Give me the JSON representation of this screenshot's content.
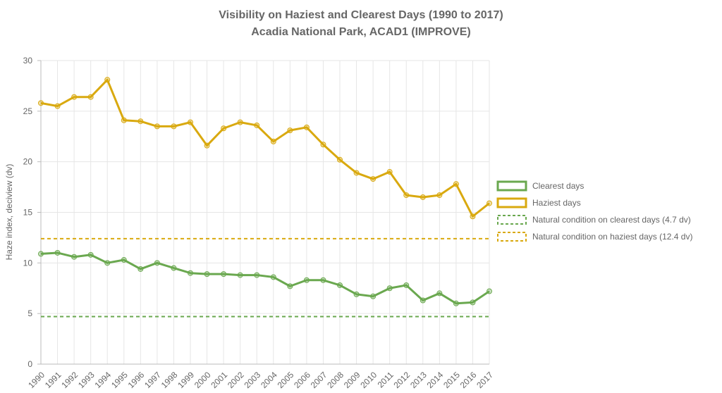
{
  "chart_data": {
    "type": "line",
    "title": "Visibility on Haziest and Clearest Days  (1990 to 2017)",
    "subtitle": "Acadia National Park, ACAD1 (IMPROVE)",
    "xlabel": "",
    "ylabel": "Haze index, deciview (dv)",
    "ylim": [
      0,
      30
    ],
    "yticks": [
      "0",
      "5",
      "10",
      "15",
      "20",
      "25",
      "30"
    ],
    "ytick_values": [
      0,
      5,
      10,
      15,
      20,
      25,
      30
    ],
    "grid": true,
    "legend_position": "right",
    "x": [
      "1990",
      "1991",
      "1992",
      "1993",
      "1994",
      "1995",
      "1996",
      "1997",
      "1998",
      "1999",
      "2000",
      "2001",
      "2002",
      "2003",
      "2004",
      "2005",
      "2006",
      "2007",
      "2008",
      "2009",
      "2010",
      "2011",
      "2012",
      "2013",
      "2014",
      "2015",
      "2016",
      "2017"
    ],
    "series": [
      {
        "name": "Clearest days",
        "style": "solid",
        "color": "#6aa84f",
        "values": [
          10.9,
          11.0,
          10.6,
          10.8,
          10.0,
          10.3,
          9.4,
          10.0,
          9.5,
          9.0,
          8.9,
          8.9,
          8.8,
          8.8,
          8.6,
          7.7,
          8.3,
          8.3,
          7.8,
          6.9,
          6.7,
          7.5,
          7.8,
          6.3,
          7.0,
          6.0,
          6.1,
          7.2
        ]
      },
      {
        "name": "Haziest days",
        "style": "solid",
        "color": "#d9a90f",
        "values": [
          25.8,
          25.5,
          26.4,
          26.4,
          28.1,
          24.1,
          24.0,
          23.5,
          23.5,
          23.9,
          21.6,
          23.3,
          23.9,
          23.6,
          22.0,
          23.1,
          23.4,
          21.7,
          20.2,
          18.9,
          18.3,
          19.0,
          16.7,
          16.5,
          16.7,
          17.8,
          14.6,
          15.9
        ]
      },
      {
        "name": "Natural condition on clearest days (4.7 dv)",
        "style": "dashed",
        "color": "#6aa84f",
        "constant": 4.7
      },
      {
        "name": "Natural condition on haziest days (12.4 dv)",
        "style": "dashed",
        "color": "#d9a90f",
        "constant": 12.4
      }
    ]
  }
}
